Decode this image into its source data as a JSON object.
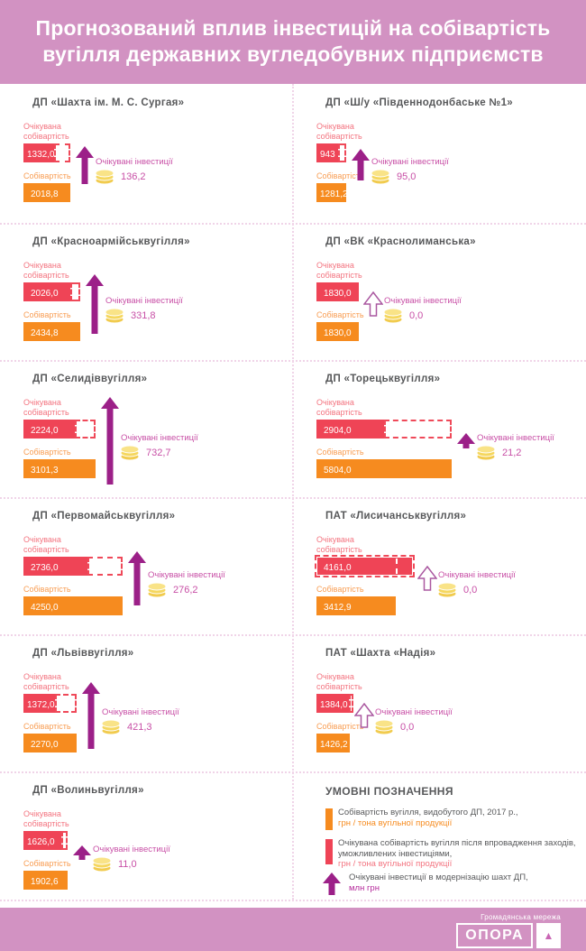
{
  "header": {
    "title_line1": "Прогнозований вплив інвестицій на собівартість",
    "title_line2": "вугілля державних вугледобувних підприємств"
  },
  "labels": {
    "expected_line1": "Очікувана",
    "expected_line2": "собівартість",
    "cost": "Собівартість",
    "investments": "Очікувані інвестиції"
  },
  "colors": {
    "pink_background": "#d292c2",
    "cost_orange": "#f68b1f",
    "expected_red": "#ef4456",
    "investment_purple": "#9c2088",
    "investment_magenta": "#c84fa6",
    "coin_yellow": "#f5d75f",
    "title_gray": "#57585a"
  },
  "panels": [
    {
      "name": "ДП «Шахта ім. М. С. Сургая»",
      "expected_cost": 1332.0,
      "expected_display": "1332,0",
      "cost": 2018.8,
      "cost_display": "2018,8",
      "investment": 136.2,
      "investment_display": "136,2"
    },
    {
      "name": "ДП «Ш/у «Південнодонбаське №1»",
      "expected_cost": 943.0,
      "expected_display": "943",
      "cost": 1281.2,
      "cost_display": "1281,2",
      "investment": 95.0,
      "investment_display": "95,0"
    },
    {
      "name": "ДП «Красноармійськвугілля»",
      "expected_cost": 2026.0,
      "expected_display": "2026,0",
      "cost": 2434.8,
      "cost_display": "2434,8",
      "investment": 331.8,
      "investment_display": "331,8"
    },
    {
      "name": "ДП «ВК «Краснолиманська»",
      "expected_cost": 1830.0,
      "expected_display": "1830,0",
      "cost": 1830.0,
      "cost_display": "1830,0",
      "investment": 0.0,
      "investment_display": "0,0"
    },
    {
      "name": "ДП «Селидіввугілля»",
      "expected_cost": 2224.0,
      "expected_display": "2224,0",
      "cost": 3101.3,
      "cost_display": "3101,3",
      "investment": 732.7,
      "investment_display": "732,7"
    },
    {
      "name": "ДП «Торецьквугілля»",
      "expected_cost": 2904.0,
      "expected_display": "2904,0",
      "cost": 5804.0,
      "cost_display": "5804,0",
      "investment": 21.2,
      "investment_display": "21,2"
    },
    {
      "name": "ДП «Первомайськвугілля»",
      "expected_cost": 2736.0,
      "expected_display": "2736,0",
      "cost": 4250.0,
      "cost_display": "4250,0",
      "investment": 276.2,
      "investment_display": "276,2"
    },
    {
      "name": "ПАТ «Лисичанськвугілля»",
      "expected_cost": 4161.0,
      "expected_display": "4161,0",
      "cost": 3412.9,
      "cost_display": "3412,9",
      "investment": 0.0,
      "investment_display": "0,0"
    },
    {
      "name": "ДП «Львіввугілля»",
      "expected_cost": 1372.0,
      "expected_display": "1372,0",
      "cost": 2270.0,
      "cost_display": "2270,0",
      "investment": 421.3,
      "investment_display": "421,3"
    },
    {
      "name": "ПАТ «Шахта «Надія»",
      "expected_cost": 1384.0,
      "expected_display": "1384,0",
      "cost": 1426.2,
      "cost_display": "1426,2",
      "investment": 0.0,
      "investment_display": "0,0"
    },
    {
      "name": "ДП «Волиньвугілля»",
      "expected_cost": 1626.0,
      "expected_display": "1626,0",
      "cost": 1902.6,
      "cost_display": "1902,6",
      "investment": 11.0,
      "investment_display": "11,0"
    }
  ],
  "legend": {
    "title": "УМОВНІ ПОЗНАЧЕННЯ",
    "items": [
      {
        "text": "Собівартість вугілля, видобутого ДП, 2017 р.,",
        "unit": "грн / тона вугільної продукції"
      },
      {
        "text": "Очікувана собівартість вугілля після впровадження заходів, уможливлених інвестиціями,",
        "unit": "грн / тона вугільної продукції"
      },
      {
        "text": "Очікувані інвестиції в модернізацію шахт ДП,",
        "unit": "млн грн"
      }
    ]
  },
  "footer": {
    "network": "Громадянська мережа",
    "logo": "ОПОРА",
    "logo_mark": "▲"
  },
  "chart_data": {
    "type": "bar",
    "title": "Прогнозований вплив інвестицій на собівартість вугілля державних вугледобувних підприємств",
    "categories": [
      "ДП «Шахта ім. М. С. Сургая»",
      "ДП «Ш/у «Південнодонбаське №1»",
      "ДП «Красноармійськвугілля»",
      "ДП «ВК «Краснолиманська»",
      "ДП «Селидіввугілля»",
      "ДП «Торецьквугілля»",
      "ДП «Первомайськвугілля»",
      "ПАТ «Лисичанськвугілля»",
      "ДП «Львіввугілля»",
      "ПАТ «Шахта «Надія»",
      "ДП «Волиньвугілля»"
    ],
    "series": [
      {
        "name": "Собівартість вугілля, видобутого ДП, 2017 р., грн / тона вугільної продукції",
        "values": [
          2018.8,
          1281.2,
          2434.8,
          1830.0,
          3101.3,
          5804.0,
          4250.0,
          3412.9,
          2270.0,
          1426.2,
          1902.6
        ]
      },
      {
        "name": "Очікувана собівартість вугілля після впровадження заходів, уможливлених інвестиціями, грн / тона вугільної продукції",
        "values": [
          1332.0,
          943.0,
          2026.0,
          1830.0,
          2224.0,
          2904.0,
          2736.0,
          4161.0,
          1372.0,
          1384.0,
          1626.0
        ]
      },
      {
        "name": "Очікувані інвестиції в модернізацію шахт ДП, млн грн",
        "values": [
          136.2,
          95.0,
          331.8,
          0.0,
          732.7,
          21.2,
          276.2,
          0.0,
          421.3,
          0.0,
          11.0
        ]
      }
    ],
    "xlabel": "",
    "ylabel": "грн / тона вугільної продукції",
    "legend_position": "bottom-right",
    "grid": false
  }
}
